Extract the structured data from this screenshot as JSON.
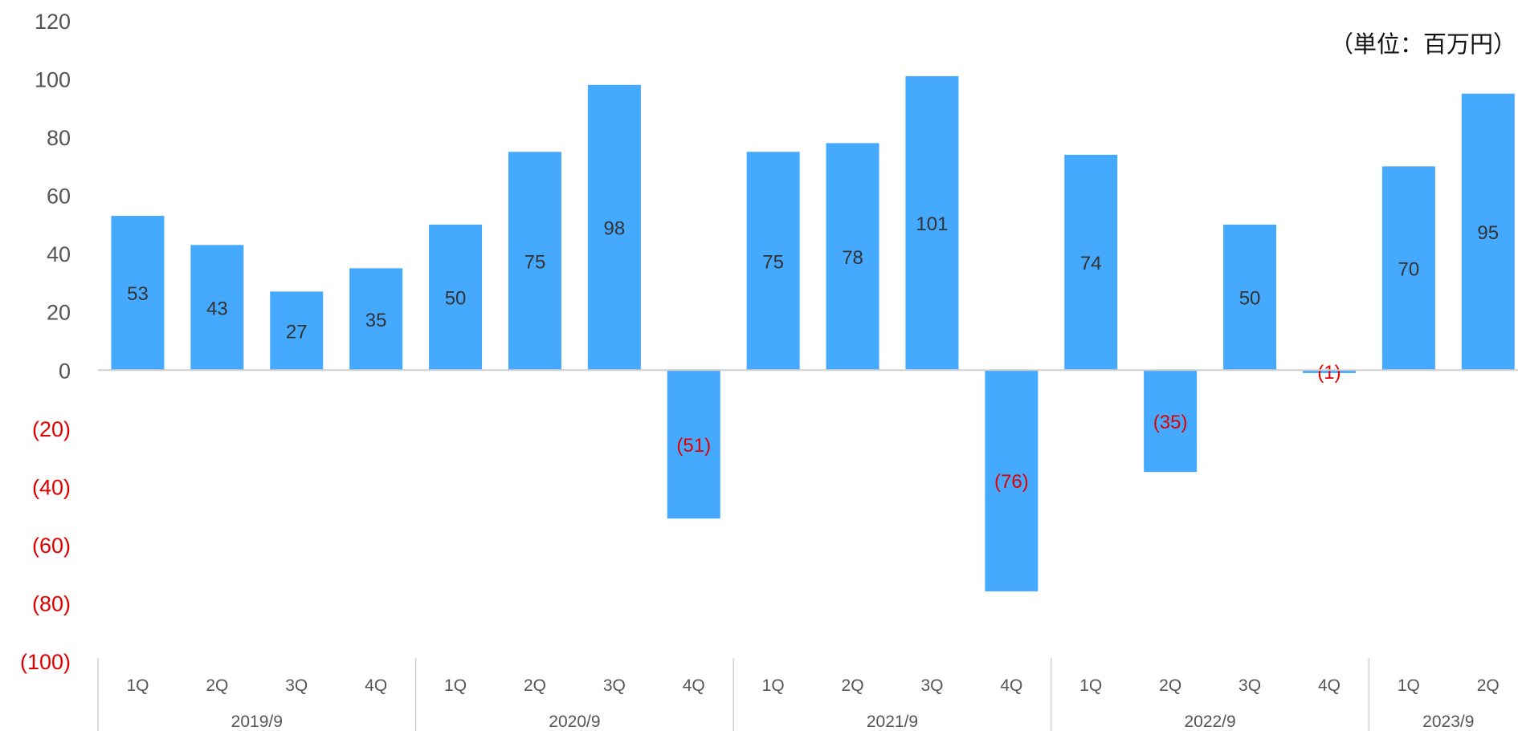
{
  "unit_label": "（単位：百万円）",
  "colors": {
    "bar": "#45a9fd",
    "negative_text": "#e00000",
    "axis_text": "#555555",
    "label_text": "#333333",
    "grid": "#d0d0d0"
  },
  "chart_data": {
    "type": "bar",
    "ylim": [
      -100,
      120
    ],
    "y_ticks": [
      120,
      100,
      80,
      60,
      40,
      20,
      0,
      -20,
      -40,
      -60,
      -80,
      -100
    ],
    "y_tick_labels": [
      "120",
      "100",
      "80",
      "60",
      "40",
      "20",
      "0",
      "(20)",
      "(40)",
      "(60)",
      "(80)",
      "(100)"
    ],
    "groups": [
      {
        "label": "2019/9",
        "quarters": [
          "1Q",
          "2Q",
          "3Q",
          "4Q"
        ]
      },
      {
        "label": "2020/9",
        "quarters": [
          "1Q",
          "2Q",
          "3Q",
          "4Q"
        ]
      },
      {
        "label": "2021/9",
        "quarters": [
          "1Q",
          "2Q",
          "3Q",
          "4Q"
        ]
      },
      {
        "label": "2022/9",
        "quarters": [
          "1Q",
          "2Q",
          "3Q",
          "4Q"
        ]
      },
      {
        "label": "2023/9",
        "quarters": [
          "1Q",
          "2Q"
        ]
      }
    ],
    "values": [
      53,
      43,
      27,
      35,
      50,
      75,
      98,
      -51,
      75,
      78,
      101,
      -76,
      74,
      -35,
      50,
      -1,
      70,
      95
    ],
    "value_labels": [
      "53",
      "43",
      "27",
      "35",
      "50",
      "75",
      "98",
      "(51)",
      "75",
      "78",
      "101",
      "(76)",
      "74",
      "(35)",
      "50",
      "(1)",
      "70",
      "95"
    ],
    "grid": false,
    "legend": "none"
  }
}
